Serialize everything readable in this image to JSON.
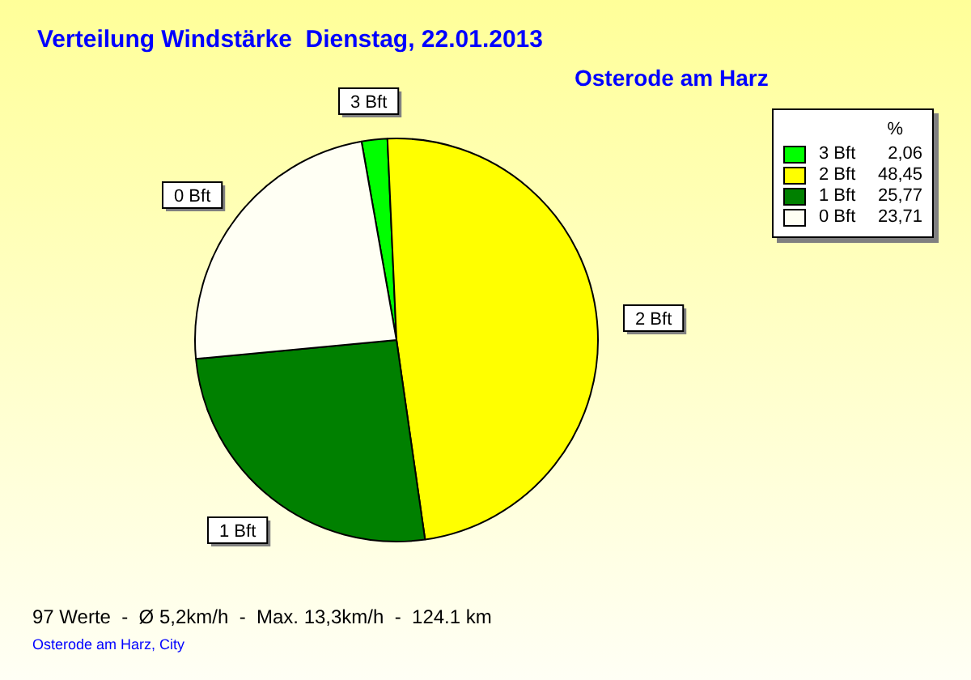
{
  "chart_data": {
    "type": "pie",
    "title": "Verteilung Windstärke  Dienstag, 22.01.2013",
    "subtitle": "Osterode am Harz",
    "legend_title": "%",
    "categories": [
      "3 Bft",
      "2 Bft",
      "1 Bft",
      "0 Bft"
    ],
    "values": [
      2.06,
      48.45,
      25.77,
      23.71
    ],
    "colors": [
      "#00ff00",
      "#ffff00",
      "#008000",
      "#fffff4"
    ],
    "value_labels": [
      "2,06",
      "48,45",
      "25,77",
      "23,71"
    ],
    "legend": "top right",
    "annotations": [
      "97 Werte  -  Ø 5,2km/h  -  Max. 13,3km/h  -  124.1 km",
      "Osterode am Harz, City"
    ]
  }
}
